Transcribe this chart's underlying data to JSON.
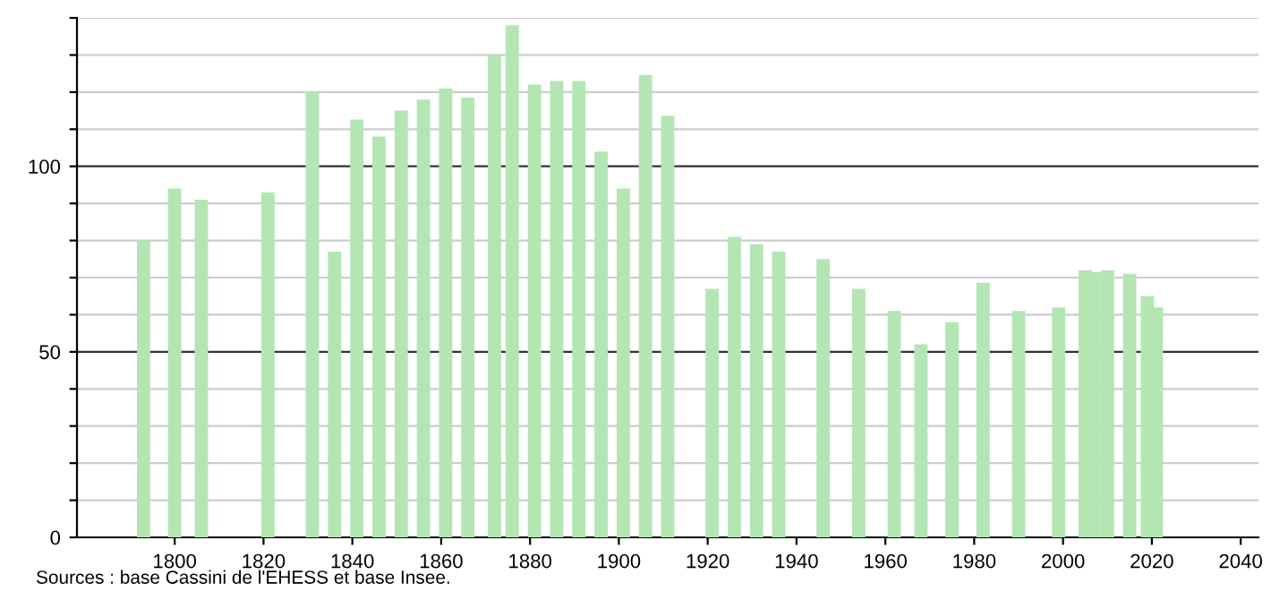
{
  "chart_data": {
    "type": "bar",
    "x": [
      1793,
      1800,
      1806,
      1821,
      1831,
      1836,
      1841,
      1846,
      1851,
      1856,
      1861,
      1866,
      1872,
      1876,
      1881,
      1886,
      1891,
      1896,
      1901,
      1906,
      1911,
      1921,
      1926,
      1931,
      1936,
      1946,
      1954,
      1962,
      1968,
      1975,
      1982,
      1990,
      1999,
      2005,
      2007,
      2010,
      2015,
      2019,
      2021
    ],
    "values": [
      80,
      94,
      91,
      93,
      120,
      77,
      112.6,
      108,
      115,
      118,
      121,
      118.5,
      130,
      138,
      122,
      123,
      123,
      104,
      94,
      124.6,
      113.6,
      67,
      81,
      79,
      77,
      75,
      67,
      61,
      52,
      58,
      68.6,
      61,
      62,
      72,
      71.5,
      72,
      71,
      65,
      62
    ],
    "color": "#b3e6b3",
    "xlim": [
      1778,
      2044
    ],
    "xticks": [
      1800,
      1820,
      1840,
      1860,
      1880,
      1900,
      1920,
      1940,
      1960,
      1980,
      2000,
      2020,
      2040
    ],
    "ylim": [
      0,
      140
    ],
    "yticks": [
      0,
      {
        "value": 10,
        "label": null
      },
      {
        "value": 20,
        "label": null
      },
      {
        "value": 30,
        "label": null
      },
      {
        "value": 40,
        "label": null
      },
      50,
      {
        "value": 60,
        "label": null
      },
      {
        "value": 70,
        "label": null
      },
      {
        "value": 80,
        "label": null
      },
      {
        "value": 90,
        "label": null
      },
      100,
      {
        "value": 110,
        "label": null
      },
      {
        "value": 120,
        "label": null
      },
      {
        "value": 130,
        "label": null
      },
      {
        "value": 140,
        "label": null
      }
    ],
    "grid": "y",
    "annotations": [
      "Sources : base Cassini de l'EHESS et base Insee."
    ]
  }
}
